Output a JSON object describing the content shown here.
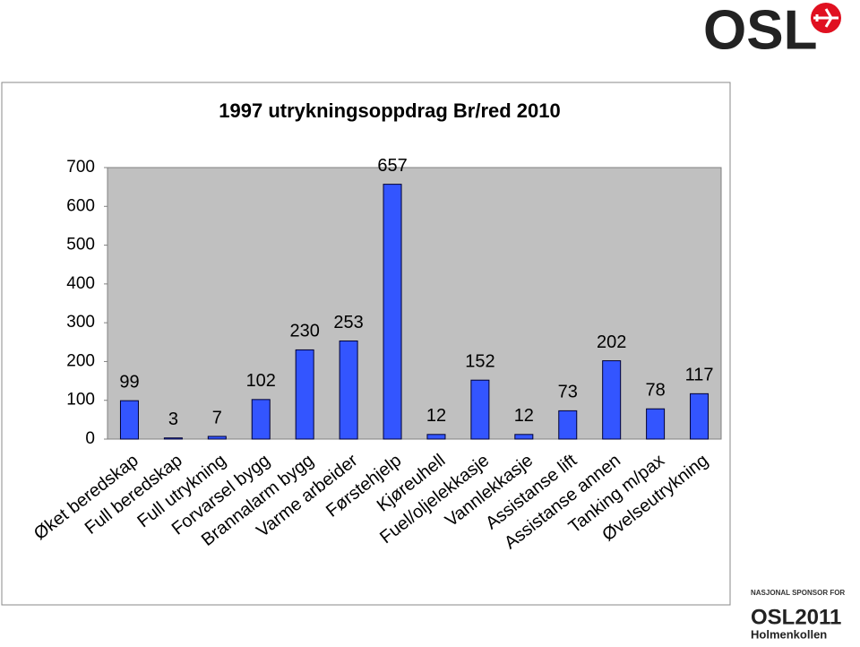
{
  "chart_data": {
    "type": "bar",
    "title": "1997 utrykningsoppdrag Br/red 2010",
    "categories": [
      "Øket beredskap",
      "Full beredskap",
      "Full utrykning",
      "Forvarsel bygg",
      "Brannalarm bygg",
      "Varme arbeider",
      "Førstehjelp",
      "Kjøreuhell",
      "Fuel/oljelekkasje",
      "Vannlekkasje",
      "Assistanse lift",
      "Assistanse annen",
      "Tanking m/pax",
      "Øvelseutrykning"
    ],
    "values": [
      99,
      3,
      7,
      102,
      230,
      253,
      657,
      12,
      152,
      12,
      73,
      202,
      78,
      117
    ],
    "color": "#3355ff",
    "ylim": [
      0,
      700
    ],
    "yticks": [
      0,
      100,
      200,
      300,
      400,
      500,
      600,
      700
    ],
    "grid": false
  },
  "branding": {
    "logo": "OSL",
    "sponsor_label": "NASJONAL SPONSOR FOR",
    "sponsor_name": "OSL2011",
    "sponsor_place": "Holmenkollen"
  }
}
